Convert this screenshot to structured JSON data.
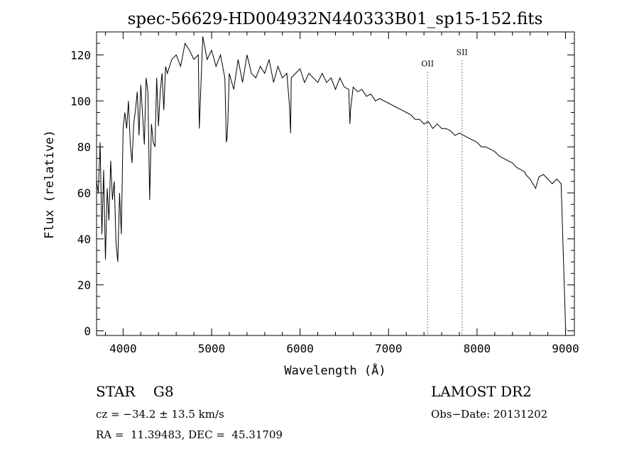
{
  "chart_data": {
    "type": "line",
    "title": "spec-56629-HD004932N440333B01_sp15-152.fits",
    "xlabel": "Wavelength (Å)",
    "ylabel": "Flux (relative)",
    "xlim": [
      3700,
      9100
    ],
    "ylim": [
      -2,
      130
    ],
    "x_ticks": [
      4000,
      5000,
      6000,
      7000,
      8000,
      9000
    ],
    "y_ticks": [
      0,
      20,
      40,
      60,
      80,
      100,
      120
    ],
    "grid": false,
    "series": [
      {
        "x": [
          3700,
          3720,
          3740,
          3760,
          3780,
          3800,
          3820,
          3840,
          3860,
          3880,
          3900,
          3920,
          3940,
          3960,
          3980,
          4000,
          4020,
          4040,
          4060,
          4080,
          4100,
          4120,
          4140,
          4160,
          4180,
          4200,
          4220,
          4240,
          4260,
          4280,
          4300,
          4320,
          4340,
          4360,
          4380,
          4400,
          4420,
          4440,
          4460,
          4480,
          4500,
          4550,
          4600,
          4650,
          4700,
          4750,
          4800,
          4850,
          4861,
          4900,
          4950,
          5000,
          5050,
          5100,
          5150,
          5167,
          5175,
          5183,
          5200,
          5250,
          5300,
          5350,
          5400,
          5450,
          5500,
          5550,
          5600,
          5650,
          5700,
          5750,
          5800,
          5850,
          5880,
          5893,
          5900,
          5950,
          6000,
          6050,
          6100,
          6150,
          6200,
          6250,
          6300,
          6350,
          6400,
          6450,
          6500,
          6550,
          6563,
          6570,
          6600,
          6650,
          6700,
          6750,
          6800,
          6850,
          6900,
          6950,
          7000,
          7050,
          7100,
          7150,
          7200,
          7250,
          7300,
          7350,
          7400,
          7450,
          7500,
          7550,
          7600,
          7650,
          7700,
          7750,
          7800,
          7850,
          7900,
          7950,
          8000,
          8050,
          8100,
          8150,
          8200,
          8250,
          8300,
          8350,
          8400,
          8450,
          8498,
          8542,
          8550,
          8600,
          8662,
          8700,
          8750,
          8800,
          8850,
          8900,
          8950,
          9000,
          9003
        ],
        "y": [
          65,
          60,
          82,
          42,
          70,
          31,
          62,
          48,
          74,
          57,
          65,
          38,
          30,
          60,
          42,
          88,
          95,
          88,
          100,
          82,
          73,
          90,
          96,
          104,
          85,
          107,
          94,
          81,
          110,
          104,
          57,
          90,
          82,
          80,
          110,
          89,
          104,
          112,
          96,
          115,
          112,
          118,
          120,
          115,
          125,
          122,
          118,
          120,
          88,
          128,
          118,
          122,
          115,
          120,
          110,
          82,
          84,
          90,
          112,
          105,
          118,
          108,
          120,
          112,
          110,
          115,
          112,
          118,
          108,
          115,
          110,
          112,
          98,
          86,
          110,
          112,
          114,
          108,
          112,
          110,
          108,
          112,
          108,
          110,
          105,
          110,
          106,
          105,
          90,
          96,
          106,
          104,
          105,
          102,
          103,
          100,
          101,
          100,
          99,
          98,
          97,
          96,
          95,
          94,
          92,
          92,
          90,
          91,
          88,
          90,
          88,
          88,
          87,
          85,
          86,
          85,
          84,
          83,
          82,
          80,
          80,
          79,
          78,
          76,
          75,
          74,
          73,
          71,
          70,
          69,
          68,
          66,
          62,
          67,
          68,
          66,
          64,
          66,
          64,
          2,
          0
        ]
      }
    ],
    "annotations": [
      {
        "label": "OII",
        "x": 7441,
        "y": 115,
        "line": "dotted"
      },
      {
        "label": "SII",
        "x": 7830,
        "y": 120,
        "line": "dotted"
      }
    ]
  },
  "info": {
    "class_line": "STAR    G8",
    "survey": "LAMOST DR2",
    "cz": "cz = −34.2 ± 13.5 km/s",
    "obs_date": "Obs−Date: 20131202",
    "coords": "RA =  11.39483, DEC =  45.31709"
  }
}
